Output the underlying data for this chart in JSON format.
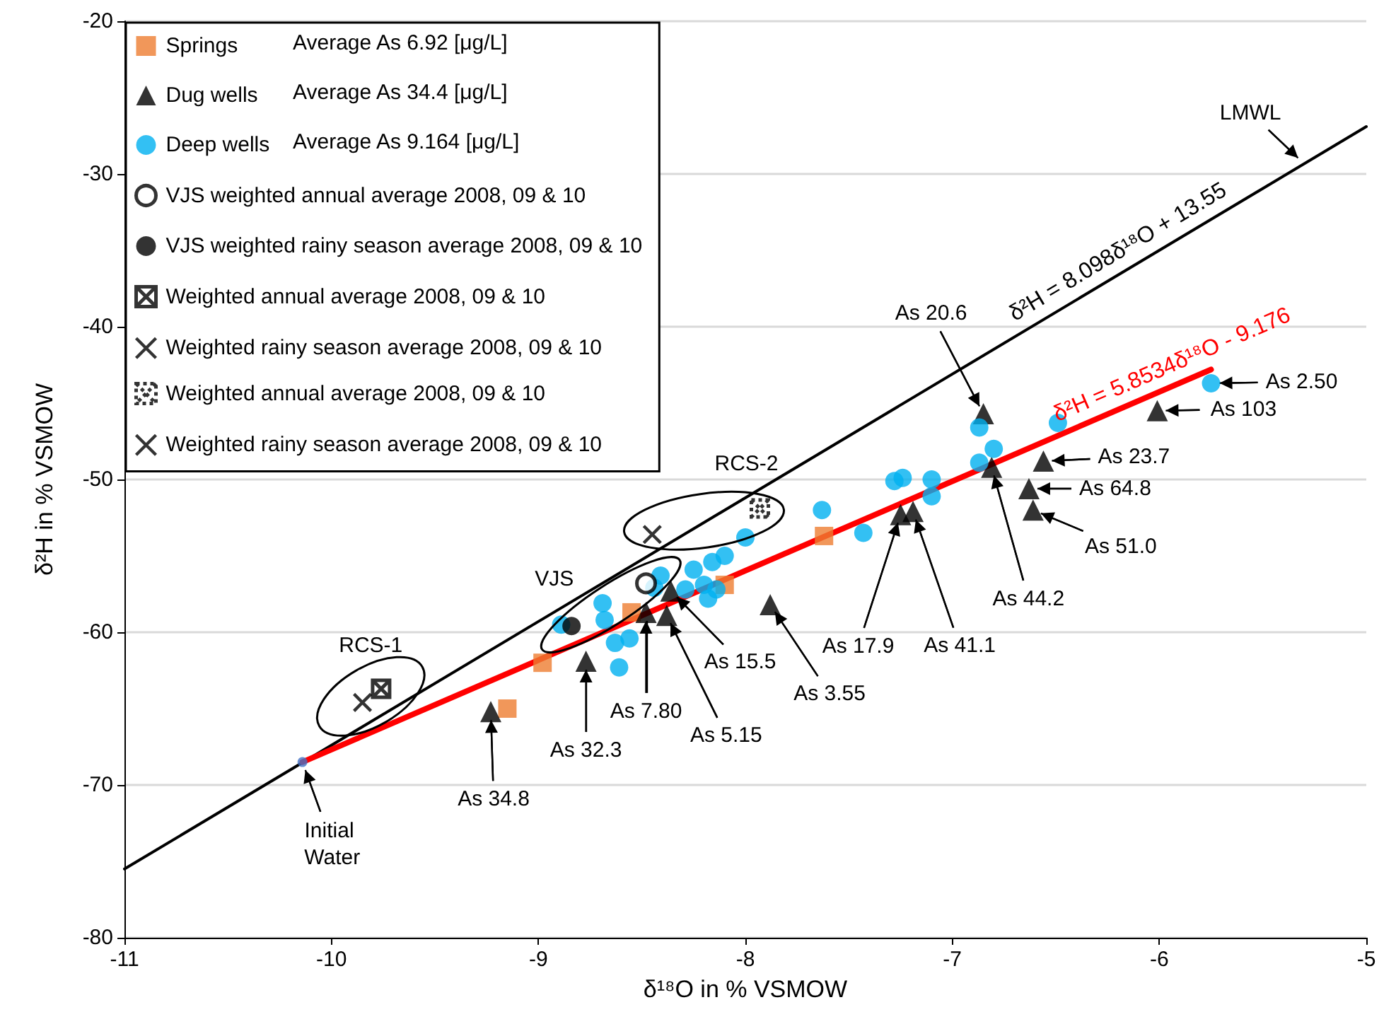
{
  "chart_data": {
    "type": "scatter",
    "xlabel": "δ¹⁸O in % VSMOW",
    "ylabel": "δ²H in % VSMOW",
    "xlim": [
      -11,
      -5
    ],
    "xticks": [
      -11,
      -10,
      -9,
      -8,
      -7,
      -6,
      -5
    ],
    "ylim": [
      -80,
      -20
    ],
    "yticks": [
      -80,
      -70,
      -60,
      -50,
      -40,
      -30,
      -20
    ],
    "grid": "y",
    "legend": "top left",
    "series": [
      {
        "name": "Springs",
        "color": "#ed7d31",
        "marker": "square",
        "x": [
          -9.15,
          -8.98,
          -8.55,
          -8.1,
          -7.62
        ],
        "values": [
          -65.0,
          -62.0,
          -58.7,
          -56.9,
          -53.7
        ]
      },
      {
        "name": "Dug wells",
        "color": "#000000",
        "marker": "triangle",
        "x": [
          -9.23,
          -8.77,
          -8.48,
          -8.38,
          -8.36,
          -7.88,
          -7.25,
          -7.19,
          -6.85,
          -6.81,
          -6.63,
          -6.61,
          -6.56,
          -6.01
        ],
        "values": [
          -65.2,
          -61.9,
          -58.7,
          -58.9,
          -57.3,
          -58.2,
          -52.3,
          -52.1,
          -45.7,
          -49.2,
          -50.6,
          -52.0,
          -48.8,
          -45.5
        ]
      },
      {
        "name": "Deep wells",
        "color": "#00b0f0",
        "marker": "circle",
        "x": [
          -8.89,
          -8.69,
          -8.68,
          -8.63,
          -8.56,
          -8.61,
          -8.44,
          -8.41,
          -8.29,
          -8.25,
          -8.2,
          -8.18,
          -8.16,
          -8.14,
          -8.1,
          -8.0,
          -7.63,
          -7.43,
          -7.28,
          -7.24,
          -7.1,
          -7.1,
          -6.87,
          -6.8,
          -6.87,
          -6.49,
          -5.75
        ],
        "values": [
          -59.5,
          -58.1,
          -59.2,
          -60.7,
          -60.4,
          -62.3,
          -57.1,
          -56.3,
          -57.2,
          -55.9,
          -56.9,
          -57.8,
          -55.4,
          -57.2,
          -55.0,
          -53.8,
          -52.0,
          -53.5,
          -50.1,
          -49.9,
          -50.0,
          -51.1,
          -48.9,
          -48.0,
          -46.6,
          -46.3,
          -43.7
        ]
      },
      {
        "name": "VJS weighted annual average 2008, 09 & 10",
        "color": "#000000",
        "marker": "circle",
        "line_style": "solid",
        "x": [
          -8.48
        ],
        "values": [
          -56.8
        ]
      },
      {
        "name": "VJS weighted rainy season average 2008, 09 & 10",
        "color": "#000000",
        "marker": "circle",
        "x": [
          -8.84
        ],
        "values": [
          -59.6
        ]
      },
      {
        "name": "Weighted annual average 2008, 09 & 10",
        "color": "#000000",
        "marker": "cross",
        "line_style": "solid",
        "x": [
          -9.76
        ],
        "values": [
          -63.7
        ]
      },
      {
        "name": "Weighted rainy season average 2008, 09 & 10",
        "color": "#000000",
        "marker": "cross",
        "x": [
          -9.85
        ],
        "values": [
          -64.6
        ]
      },
      {
        "name": "Weighted annual average 2008, 09 & 10",
        "color": "#000000",
        "marker": "cross",
        "line_style": "dotted",
        "x": [
          -7.93
        ],
        "values": [
          -51.9
        ]
      },
      {
        "name": "Weighted rainy season average 2008, 09 & 10",
        "color": "#000000",
        "marker": "cross",
        "x": [
          -8.45
        ],
        "values": [
          -53.6
        ]
      },
      {
        "color": "#4472c4",
        "marker": "circle",
        "x": [
          -10.14
        ],
        "values": [
          -68.5
        ]
      },
      {
        "type": "line",
        "name": "LMWL",
        "color": "#000000",
        "marker": "none",
        "x": [
          -11,
          -5
        ],
        "values": [
          -75.5,
          -26.9
        ]
      },
      {
        "type": "line",
        "color": "#ff0000",
        "marker": "none",
        "x": [
          -10.14,
          -5.75
        ],
        "values": [
          -68.5,
          -42.8
        ]
      }
    ],
    "annotations": [
      "Average As 6.92 [μg/L]",
      "Average As 34.4 [μg/L]",
      "Average As 9.164 [μg/L]",
      {
        "text": "RCS-1",
        "x": -9.81,
        "y": -64.2
      },
      {
        "text": "VJS",
        "x": -8.65,
        "y": -58.2
      },
      {
        "text": "RCS-2",
        "x": -8.2,
        "y": -52.7
      },
      {
        "text": "δ²H = 8.098δ¹⁸O + 13.55",
        "x": -6.15,
        "y": -36.25
      },
      {
        "text": "δ²H = 5.8534δ¹⁸O - 9.176",
        "x": -5.9,
        "y": -43.71
      },
      {
        "text": "Initial Water",
        "x": -10.14,
        "y": -68.5
      },
      {
        "text": "As 34.8",
        "x": -9.23,
        "y": -65.2
      },
      {
        "text": "As 32.3",
        "x": -8.77,
        "y": -61.9
      },
      {
        "text": "As 7.80",
        "x": -8.48,
        "y": -58.7
      },
      {
        "text": "As 5.15",
        "x": -8.38,
        "y": -58.9
      },
      {
        "text": "As 15.5",
        "x": -8.36,
        "y": -57.3
      },
      {
        "text": "As 3.55",
        "x": -7.88,
        "y": -58.2
      },
      {
        "text": "As 17.9",
        "x": -7.25,
        "y": -52.3
      },
      {
        "text": "As 41.1",
        "x": -7.19,
        "y": -52.1
      },
      {
        "text": "As 20.6",
        "x": -6.85,
        "y": -45.7
      },
      {
        "text": "As 44.2",
        "x": -6.81,
        "y": -49.2
      },
      {
        "text": "As 51.0",
        "x": -6.61,
        "y": -52.0
      },
      {
        "text": "As 64.8",
        "x": -6.63,
        "y": -50.6
      },
      {
        "text": "As 23.7",
        "x": -6.56,
        "y": -48.8
      },
      {
        "text": "As 103",
        "x": -6.01,
        "y": -45.5
      },
      {
        "text": "As 2.50",
        "x": -5.75,
        "y": -43.7
      }
    ]
  }
}
